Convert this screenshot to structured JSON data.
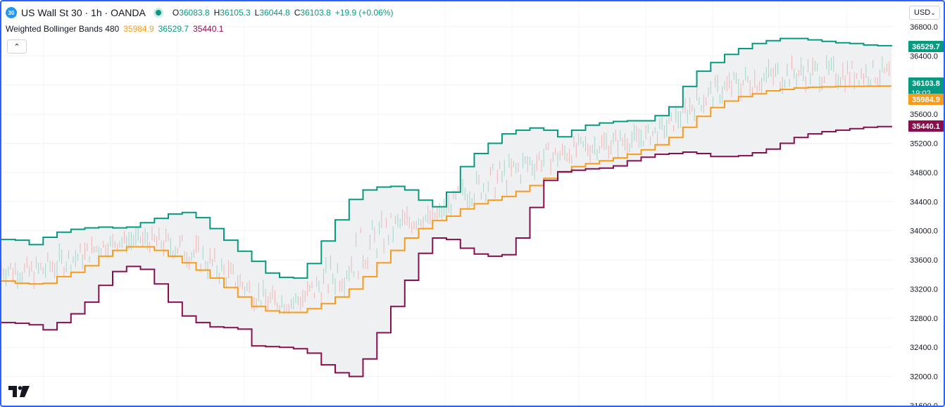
{
  "header": {
    "symbol_badge": "30",
    "symbol_title": "US Wall St 30 · 1h · OANDA",
    "ohlc": {
      "open_label": "O",
      "open": "36083.8",
      "high_label": "H",
      "high": "36105.3",
      "low_label": "L",
      "low": "36044.8",
      "close_label": "C",
      "close": "36103.8",
      "change": "+19.9 (+0.06%)"
    }
  },
  "indicator": {
    "name": "Weighted Bollinger Bands 480",
    "basis": "35984.9",
    "upper": "36529.7",
    "lower": "35440.1"
  },
  "toolbar": {
    "collapse_icon": "chevron-up-icon",
    "currency": "USD",
    "currency_icon": "chevron-down-icon"
  },
  "logo": {
    "text": "TV"
  },
  "colors": {
    "upper": "#089981",
    "lower": "#880e4f",
    "basis": "#f89b1d",
    "fill": "#eef0f2",
    "candle_up": "#a5d6c8",
    "candle_down": "#f0b6b8",
    "price_tag": "#089981"
  },
  "chart_data": {
    "type": "line",
    "title": "",
    "y_ticks": [
      "36800.0",
      "36400.0",
      "36000.0",
      "35600.0",
      "35200.0",
      "34800.0",
      "34400.0",
      "34000.0",
      "33600.0",
      "33200.0",
      "32800.0",
      "32400.0",
      "32000.0",
      "31600.0"
    ],
    "ylim": [
      31600,
      36800
    ],
    "x": [
      0,
      1,
      2,
      3,
      4,
      5,
      6,
      7,
      8,
      9,
      10,
      11,
      12,
      13,
      14,
      15,
      16,
      17,
      18,
      19,
      20,
      21,
      22,
      23,
      24,
      25,
      26,
      27,
      28,
      29,
      30,
      31,
      32,
      33,
      34,
      35,
      36,
      37,
      38,
      39,
      40,
      41,
      42,
      43,
      44,
      45,
      46,
      47,
      48,
      49,
      50,
      51,
      52,
      53,
      54,
      55,
      56,
      57,
      58,
      59,
      60,
      61,
      62,
      63,
      64
    ],
    "series": [
      {
        "name": "Upper",
        "values": [
          33880,
          33870,
          33810,
          33910,
          33980,
          34020,
          34040,
          34050,
          34040,
          34050,
          34110,
          34170,
          34230,
          34250,
          34180,
          34030,
          33870,
          33720,
          33580,
          33420,
          33360,
          33350,
          33550,
          33860,
          34150,
          34430,
          34560,
          34600,
          34610,
          34560,
          34420,
          34330,
          34530,
          34880,
          35060,
          35200,
          35330,
          35380,
          35410,
          35380,
          35290,
          35380,
          35450,
          35480,
          35500,
          35510,
          35510,
          35580,
          35700,
          35980,
          36190,
          36310,
          36420,
          36500,
          36570,
          36610,
          36640,
          36640,
          36620,
          36600,
          36580,
          36570,
          36550,
          36540,
          36530
        ]
      },
      {
        "name": "Basis",
        "values": [
          33310,
          33280,
          33270,
          33280,
          33370,
          33430,
          33520,
          33650,
          33730,
          33780,
          33780,
          33730,
          33650,
          33560,
          33460,
          33350,
          33220,
          33090,
          32960,
          32900,
          32880,
          32880,
          32930,
          33000,
          33090,
          33200,
          33370,
          33560,
          33730,
          33900,
          34030,
          34140,
          34200,
          34300,
          34370,
          34420,
          34470,
          34540,
          34620,
          34720,
          34800,
          34880,
          34920,
          34960,
          35000,
          35050,
          35110,
          35180,
          35280,
          35420,
          35570,
          35690,
          35780,
          35840,
          35880,
          35920,
          35940,
          35960,
          35970,
          35975,
          35980,
          35982,
          35984,
          35985,
          35985
        ]
      },
      {
        "name": "Lower",
        "values": [
          32740,
          32730,
          32710,
          32640,
          32740,
          32860,
          33020,
          33250,
          33440,
          33510,
          33470,
          33270,
          33020,
          32830,
          32740,
          32680,
          32670,
          32650,
          32420,
          32410,
          32400,
          32380,
          32320,
          32160,
          32050,
          32000,
          32240,
          32600,
          32960,
          33320,
          33690,
          33900,
          33880,
          33760,
          33680,
          33650,
          33670,
          33900,
          34320,
          34690,
          34810,
          34830,
          34850,
          34860,
          34890,
          34960,
          35010,
          35050,
          35060,
          35080,
          35060,
          35020,
          35020,
          35030,
          35070,
          35120,
          35200,
          35280,
          35330,
          35360,
          35380,
          35400,
          35420,
          35430,
          35440
        ]
      }
    ],
    "price_tags": [
      {
        "label": "36529.7",
        "value": 36529.7,
        "color": "#089981"
      },
      {
        "label": "36103.8",
        "sublabel": "19:02",
        "value": 36103.8,
        "color": "#089981"
      },
      {
        "label": "35984.9",
        "value": 35984.9,
        "color": "#f89b1d"
      },
      {
        "label": "35440.1",
        "value": 35440.1,
        "color": "#880e4f"
      }
    ],
    "grid": true,
    "legend": "top-left"
  }
}
